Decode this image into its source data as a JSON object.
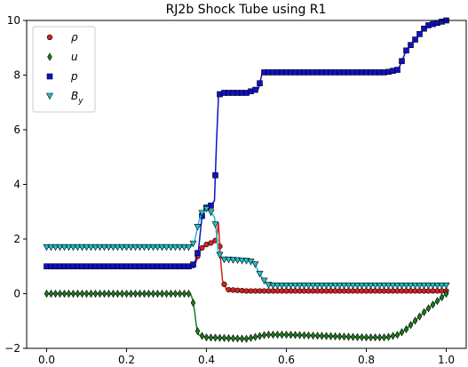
{
  "chart_data": {
    "type": "line",
    "title": "RJ2b Shock Tube using R1",
    "xlabel": "",
    "ylabel": "",
    "xlim": [
      -0.05,
      1.05
    ],
    "ylim": [
      -2,
      10
    ],
    "xticks": [
      0.0,
      0.2,
      0.4,
      0.6,
      0.8,
      1.0
    ],
    "xtick_labels": [
      "0.0",
      "0.2",
      "0.4",
      "0.6",
      "0.8",
      "1.0"
    ],
    "yticks": [
      -2,
      0,
      2,
      4,
      6,
      8,
      10
    ],
    "ytick_labels": [
      "−2",
      "0",
      "2",
      "4",
      "6",
      "8",
      "10"
    ],
    "grid": false,
    "legend_position": "top-left",
    "series": [
      {
        "name": "ρ",
        "marker": "circle",
        "color": "#d62020",
        "x": [
          0.0,
          0.1,
          0.2,
          0.3,
          0.36,
          0.37,
          0.375,
          0.38,
          0.39,
          0.4,
          0.41,
          0.42,
          0.425,
          0.43,
          0.435,
          0.44,
          0.45,
          0.5,
          0.6,
          0.7,
          0.8,
          0.9,
          1.0
        ],
        "values": [
          1.0,
          1.0,
          1.0,
          1.0,
          1.0,
          1.05,
          1.2,
          1.5,
          1.7,
          1.8,
          1.85,
          1.9,
          2.0,
          2.6,
          1.3,
          0.5,
          0.15,
          0.1,
          0.1,
          0.1,
          0.1,
          0.1,
          0.1
        ]
      },
      {
        "name": "u",
        "marker": "diamond",
        "color": "#1f7a1f",
        "x": [
          0.0,
          0.1,
          0.2,
          0.3,
          0.36,
          0.365,
          0.37,
          0.375,
          0.38,
          0.4,
          0.5,
          0.55,
          0.6,
          0.7,
          0.8,
          0.85,
          0.88,
          0.9,
          0.95,
          1.0
        ],
        "values": [
          0.0,
          0.0,
          0.0,
          0.0,
          0.0,
          -0.2,
          -0.6,
          -1.2,
          -1.5,
          -1.6,
          -1.65,
          -1.5,
          -1.5,
          -1.55,
          -1.6,
          -1.6,
          -1.5,
          -1.3,
          -0.6,
          0.0
        ]
      },
      {
        "name": "p",
        "marker": "square",
        "color": "#1010c8",
        "x": [
          0.0,
          0.1,
          0.2,
          0.3,
          0.36,
          0.37,
          0.38,
          0.39,
          0.4,
          0.41,
          0.42,
          0.425,
          0.43,
          0.435,
          0.44,
          0.5,
          0.53,
          0.54,
          0.6,
          0.7,
          0.8,
          0.85,
          0.88,
          0.9,
          0.95,
          1.0
        ],
        "values": [
          1.0,
          1.0,
          1.0,
          1.0,
          1.0,
          1.1,
          1.6,
          3.0,
          3.15,
          3.2,
          3.4,
          5.5,
          7.2,
          7.35,
          7.35,
          7.35,
          7.5,
          8.1,
          8.1,
          8.1,
          8.1,
          8.1,
          8.2,
          8.9,
          9.8,
          10.0
        ]
      },
      {
        "name": "B_y",
        "marker": "triangle-down",
        "color": "#20c0c8",
        "x": [
          0.0,
          0.1,
          0.2,
          0.3,
          0.36,
          0.37,
          0.38,
          0.39,
          0.4,
          0.41,
          0.42,
          0.425,
          0.43,
          0.44,
          0.45,
          0.5,
          0.52,
          0.53,
          0.55,
          0.56,
          0.6,
          0.7,
          0.8,
          0.9,
          1.0
        ],
        "values": [
          1.7,
          1.7,
          1.7,
          1.7,
          1.7,
          1.9,
          2.6,
          3.0,
          3.1,
          3.0,
          2.8,
          2.2,
          1.5,
          1.25,
          1.25,
          1.2,
          1.15,
          0.8,
          0.35,
          0.3,
          0.3,
          0.3,
          0.3,
          0.3,
          0.3
        ]
      }
    ]
  }
}
